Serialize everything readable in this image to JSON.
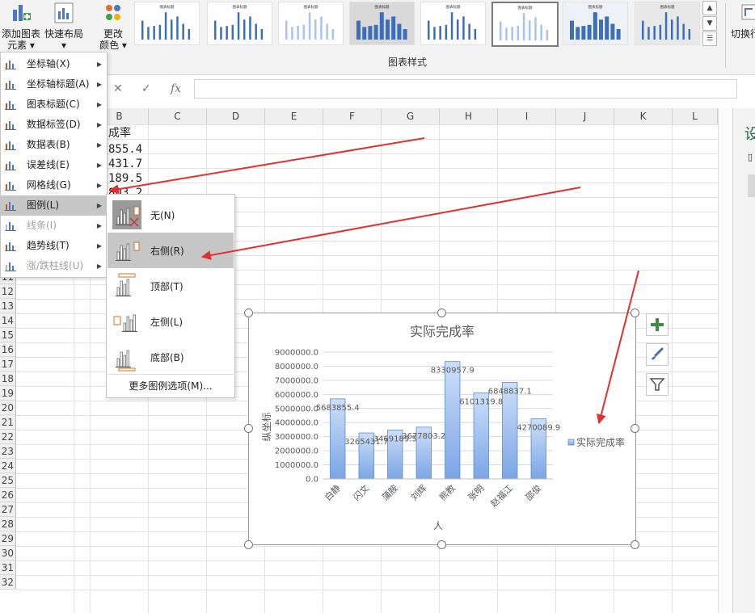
{
  "ribbon": {
    "add_element_label_line1": "添加图表",
    "add_element_label_line2": "元素",
    "quick_layout_label": "快速布局",
    "change_color_label_line1": "更改",
    "change_color_label_line2": "颜色",
    "chart_styles_group_label": "图表样式",
    "switch_row_col_label": "切换行",
    "style_thumbnails": [
      {
        "title": "图表标题"
      },
      {
        "title": "图表标题"
      },
      {
        "title": "图表标题"
      },
      {
        "title": "图表标题"
      },
      {
        "title": "图表标题"
      },
      {
        "title": "图表标题"
      },
      {
        "title": "图表标题"
      },
      {
        "title": "图表标题"
      }
    ]
  },
  "formula_bar": {
    "cancel_symbol": "✕",
    "confirm_symbol": "✓",
    "fx_label": "fx",
    "value": ""
  },
  "grid": {
    "columns": [
      "B",
      "C",
      "D",
      "E",
      "F",
      "G",
      "H",
      "I",
      "J",
      "K",
      "L"
    ],
    "rows": [
      "11",
      "12",
      "13",
      "14",
      "15",
      "16",
      "17",
      "18",
      "19",
      "20",
      "21",
      "22",
      "23",
      "24",
      "25",
      "26",
      "27",
      "28",
      "29",
      "30",
      "31",
      "32"
    ],
    "visible_cells": [
      "成率",
      "855.4",
      "431.7",
      "189.5",
      "803.2"
    ]
  },
  "menu": {
    "items": [
      {
        "label": "坐标轴(X)",
        "icon": "axis-icon",
        "disabled": false
      },
      {
        "label": "坐标轴标题(A)",
        "icon": "axis-title-icon",
        "disabled": false
      },
      {
        "label": "图表标题(C)",
        "icon": "chart-title-icon",
        "disabled": false
      },
      {
        "label": "数据标签(D)",
        "icon": "data-label-icon",
        "disabled": false
      },
      {
        "label": "数据表(B)",
        "icon": "data-table-icon",
        "disabled": false
      },
      {
        "label": "误差线(E)",
        "icon": "error-bar-icon",
        "disabled": false
      },
      {
        "label": "网格线(G)",
        "icon": "gridlines-icon",
        "disabled": false
      },
      {
        "label": "图例(L)",
        "icon": "legend-icon",
        "disabled": false,
        "highlighted": true
      },
      {
        "label": "线条(I)",
        "icon": "lines-icon",
        "disabled": true
      },
      {
        "label": "趋势线(T)",
        "icon": "trendline-icon",
        "disabled": false
      },
      {
        "label": "涨/跌柱线(U)",
        "icon": "up-down-bars-icon",
        "disabled": true
      }
    ]
  },
  "legend_submenu": {
    "items": [
      {
        "label": "无(N)",
        "icon": "legend-none-icon"
      },
      {
        "label": "右侧(R)",
        "icon": "legend-right-icon",
        "highlighted": true
      },
      {
        "label": "顶部(T)",
        "icon": "legend-top-icon"
      },
      {
        "label": "左侧(L)",
        "icon": "legend-left-icon"
      },
      {
        "label": "底部(B)",
        "icon": "legend-bottom-icon"
      }
    ],
    "more_options_label": "更多图例选项(M)..."
  },
  "chart_side_buttons": {
    "add_icon": "plus-icon",
    "style_icon": "brush-icon",
    "filter_icon": "filter-icon"
  },
  "colors": {
    "bar_top": "#cddff8",
    "bar_bottom": "#7aa5e6",
    "bar_border": "#5b8bd0",
    "arrow": "#e03030",
    "menu_highlight": "#c6c6c6"
  },
  "chart_data": {
    "type": "bar",
    "title": "实际完成率",
    "xlabel": "人",
    "ylabel": "纵坐标",
    "categories": [
      "白静",
      "闪文",
      "蒲胺",
      "刘辉",
      "熊教",
      "张明",
      "赵福江",
      "邵俊"
    ],
    "series": [
      {
        "name": "实际完成率",
        "values": [
          5683855.4,
          3265431.7,
          3469189.5,
          3677803.2,
          8330957.9,
          6101319.8,
          6848837.1,
          4270089.9
        ]
      }
    ],
    "data_labels": [
      "5683855.4",
      "3265431.7",
      "3469189.5",
      "3677803.2",
      "8330957.9",
      "6101319.8",
      "6848837.1",
      "4270089.9"
    ],
    "yticks": [
      "0.0",
      "1000000.0",
      "2000000.0",
      "3000000.0",
      "4000000.0",
      "5000000.0",
      "6000000.0",
      "7000000.0",
      "8000000.0",
      "9000000.0"
    ],
    "ylim": [
      0,
      9000000
    ],
    "grid": true,
    "legend": "right"
  }
}
